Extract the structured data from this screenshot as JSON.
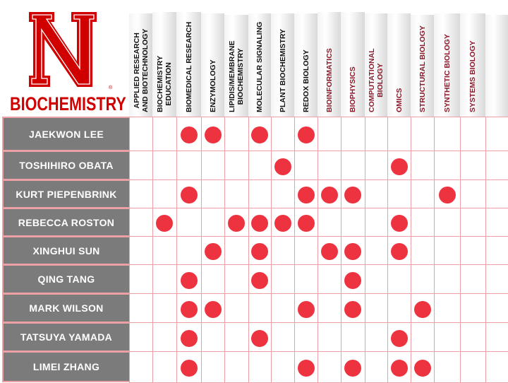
{
  "logo": {
    "letter": "N",
    "wordmark": "BIOCHEMISTRY",
    "registered": "®"
  },
  "colors": {
    "brand_red": "#d00000",
    "dot": "#ee3340",
    "grid_line": "#eaa0a4",
    "name_bg": "#7b7b7b",
    "topic_dark": "#111111",
    "topic_red": "#8b1a2b"
  },
  "topics": [
    {
      "label": [
        "APPLIED RESEARCH",
        "AND BIOTECHNOLOGY"
      ],
      "color": "#111111"
    },
    {
      "label": [
        "BIOCHEMISTRY",
        "EDUCATION"
      ],
      "color": "#111111"
    },
    {
      "label": [
        "BIOMEDICAL RESEARCH"
      ],
      "color": "#111111"
    },
    {
      "label": [
        "ENZYMOLOGY"
      ],
      "color": "#111111"
    },
    {
      "label": [
        "LIPIDIS/MEMBRANE",
        "BIOCHEMISTRY"
      ],
      "color": "#111111"
    },
    {
      "label": [
        "MOLECULAR SIGNALING"
      ],
      "color": "#111111"
    },
    {
      "label": [
        "PLANT BIOCHEMISTRY"
      ],
      "color": "#111111"
    },
    {
      "label": [
        "REDOX BIOLOGY"
      ],
      "color": "#111111"
    },
    {
      "label": [
        "BIOINFORMATICS"
      ],
      "color": "#8b1a2b"
    },
    {
      "label": [
        "BIOPHYSICS"
      ],
      "color": "#8b1a2b"
    },
    {
      "label": [
        "COMPUTATIONAL",
        "BIOLOGY"
      ],
      "color": "#8b1a2b"
    },
    {
      "label": [
        "OMICS"
      ],
      "color": "#8b1a2b"
    },
    {
      "label": [
        "STRUCTURAL BIOLOGY"
      ],
      "color": "#8b1a2b"
    },
    {
      "label": [
        "SYNTHETIC BIOLOGY"
      ],
      "color": "#8b1a2b"
    },
    {
      "label": [
        "SYSTEMS BIOLOGY"
      ],
      "color": "#8b1a2b"
    },
    {
      "label": [],
      "color": "#8b1a2b"
    }
  ],
  "people": [
    {
      "name": "JAEKWON LEE",
      "topics": [
        "BIOMEDICAL RESEARCH",
        "ENZYMOLOGY",
        "MOLECULAR SIGNALING",
        "REDOX BIOLOGY"
      ]
    },
    {
      "name": "TOSHIHIRO OBATA",
      "topics": [
        "PLANT BIOCHEMISTRY",
        "OMICS"
      ]
    },
    {
      "name": "KURT PIEPENBRINK",
      "topics": [
        "BIOMEDICAL RESEARCH",
        "REDOX BIOLOGY",
        "BIOINFORMATICS",
        "BIOPHYSICS",
        "SYNTHETIC BIOLOGY"
      ]
    },
    {
      "name": "REBECCA ROSTON",
      "topics": [
        "BIOCHEMISTRY EDUCATION",
        "LIPIDIS/MEMBRANE BIOCHEMISTRY",
        "MOLECULAR SIGNALING",
        "PLANT BIOCHEMISTRY",
        "REDOX BIOLOGY",
        "OMICS"
      ]
    },
    {
      "name": "XINGHUI SUN",
      "topics": [
        "ENZYMOLOGY",
        "MOLECULAR SIGNALING",
        "BIOINFORMATICS",
        "BIOPHYSICS",
        "OMICS"
      ]
    },
    {
      "name": "QING TANG",
      "topics": [
        "BIOMEDICAL RESEARCH",
        "MOLECULAR SIGNALING",
        "BIOPHYSICS"
      ]
    },
    {
      "name": "MARK WILSON",
      "topics": [
        "BIOMEDICAL RESEARCH",
        "ENZYMOLOGY",
        "REDOX BIOLOGY",
        "BIOPHYSICS",
        "STRUCTURAL BIOLOGY"
      ]
    },
    {
      "name": "TATSUYA YAMADA",
      "topics": [
        "BIOMEDICAL RESEARCH",
        "MOLECULAR SIGNALING",
        "OMICS"
      ]
    },
    {
      "name": "LIMEI ZHANG",
      "topics": [
        "BIOMEDICAL RESEARCH",
        "REDOX BIOLOGY",
        "BIOPHYSICS",
        "OMICS",
        "STRUCTURAL BIOLOGY"
      ]
    }
  ]
}
